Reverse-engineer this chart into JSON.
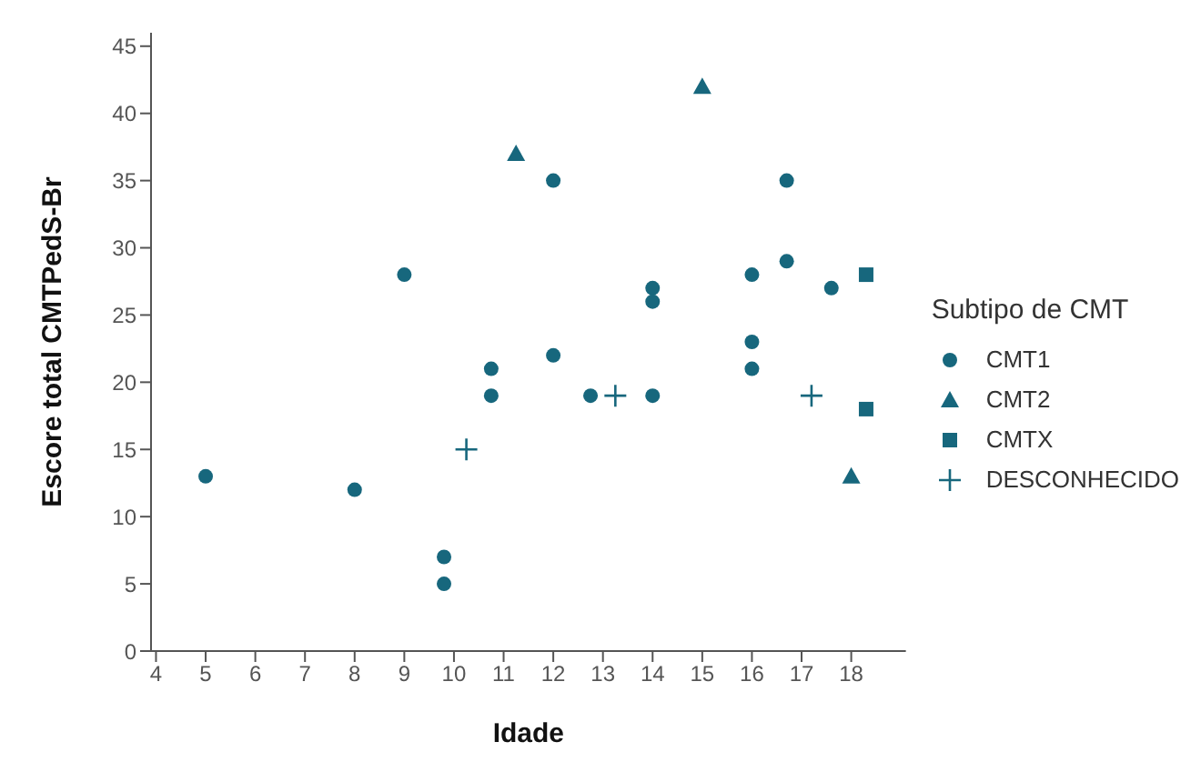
{
  "chart_data": {
    "type": "scatter",
    "xlabel": "Idade",
    "ylabel": "Escore total CMTPedS-Br",
    "legend_title": "Subtipo de CMT",
    "legend": "right",
    "grid": false,
    "xlim": [
      3.9,
      19.1
    ],
    "xticks": [
      4,
      5,
      6,
      7,
      8,
      9,
      10,
      11,
      12,
      13,
      14,
      15,
      16,
      17,
      18
    ],
    "ylim": [
      0,
      46
    ],
    "yticks": [
      0,
      5,
      10,
      15,
      20,
      25,
      30,
      35,
      40,
      45
    ],
    "series": [
      {
        "name": "CMT1",
        "color": "#17677d",
        "marker": "circle",
        "x": [
          5,
          8,
          9,
          9.8,
          9.8,
          10.75,
          10.75,
          12,
          12,
          12.75,
          14,
          14,
          14,
          16,
          16,
          16,
          16.7,
          16.7,
          17.6
        ],
        "values": [
          13,
          12,
          28,
          7,
          5,
          21,
          19,
          35,
          22,
          19,
          27,
          26,
          19,
          28,
          23,
          21,
          35,
          29,
          27
        ]
      },
      {
        "name": "CMT2",
        "color": "#17677d",
        "marker": "triangle",
        "x": [
          11.25,
          15,
          18
        ],
        "values": [
          37,
          42,
          13
        ]
      },
      {
        "name": "CMTX",
        "color": "#17677d",
        "marker": "square",
        "x": [
          18.3,
          18.3
        ],
        "values": [
          28,
          18
        ]
      },
      {
        "name": "DESCONHECIDO",
        "color": "#17677d",
        "marker": "cross",
        "x": [
          10.25,
          13.25,
          17.2
        ],
        "values": [
          15,
          19,
          19
        ]
      }
    ]
  }
}
